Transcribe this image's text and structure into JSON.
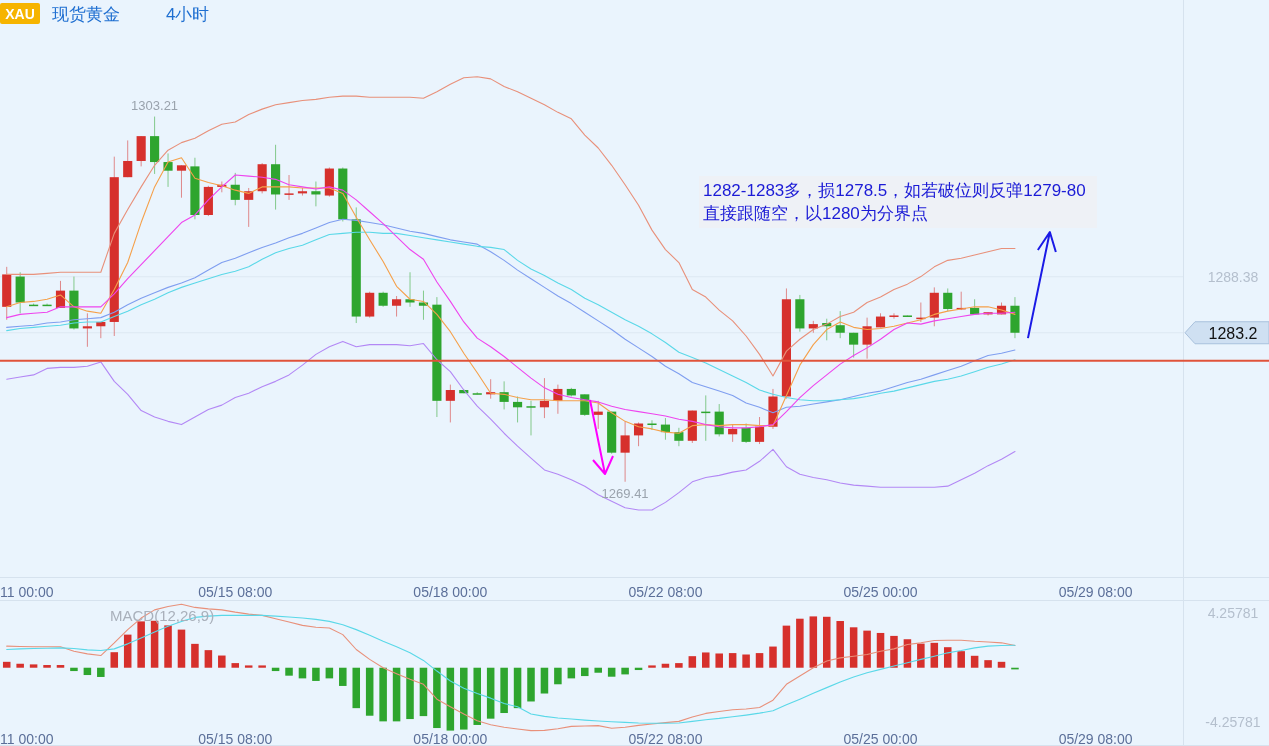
{
  "chart_data": [
    {
      "type": "candlestick",
      "title": "现货黄金",
      "subtitle": "4小时",
      "categories": [
        null,
        "11 00:00",
        null,
        null,
        null,
        null,
        null,
        null,
        null,
        null,
        null,
        null,
        null,
        null,
        null,
        null,
        null,
        "05/15 08:00",
        null,
        null,
        null,
        null,
        null,
        null,
        null,
        null,
        null,
        null,
        null,
        null,
        null,
        null,
        null,
        "05/18 00:00",
        null,
        null,
        null,
        null,
        null,
        null,
        null,
        null,
        null,
        null,
        null,
        null,
        null,
        null,
        null,
        "05/22 08:00",
        null,
        null,
        null,
        null,
        null,
        null,
        null,
        null,
        null,
        null,
        null,
        null,
        null,
        null,
        null,
        "05/25 00:00",
        null,
        null,
        null,
        null,
        null,
        null,
        null,
        null,
        null,
        null,
        null,
        null,
        null,
        null,
        null,
        "05/29 08:00",
        null,
        null,
        null,
        null,
        null,
        null
      ],
      "ohlc": [
        [
          1285.6,
          1289.3,
          1284.4,
          1288.6
        ],
        [
          1288.4,
          1288.8,
          1285.0,
          1286.0
        ],
        [
          1285.8,
          1285.9,
          1285.7,
          1285.8
        ],
        [
          1285.8,
          1285.9,
          1285.7,
          1285.8
        ],
        [
          1285.5,
          1288.0,
          1285.5,
          1287.1
        ],
        [
          1287.1,
          1288.4,
          1283.5,
          1283.6
        ],
        [
          1283.6,
          1285.0,
          1281.9,
          1283.8
        ],
        [
          1283.8,
          1284.2,
          1282.7,
          1284.2
        ],
        [
          1284.2,
          1299.5,
          1282.9,
          1297.6
        ],
        [
          1297.6,
          1301.0,
          1297.6,
          1299.1
        ],
        [
          1299.1,
          1301.4,
          1298.6,
          1301.4
        ],
        [
          1301.4,
          1303.21,
          1297.9,
          1299.0
        ],
        [
          1299.0,
          1299.8,
          1296.7,
          1298.2
        ],
        [
          1298.2,
          1298.7,
          1295.7,
          1298.7
        ],
        [
          1298.6,
          1299.4,
          1293.7,
          1294.1
        ],
        [
          1294.1,
          1296.8,
          1294.0,
          1296.7
        ],
        [
          1296.7,
          1297.2,
          1296.2,
          1296.9
        ],
        [
          1296.9,
          1298.0,
          1295.0,
          1295.5
        ],
        [
          1295.5,
          1296.6,
          1293.0,
          1296.3
        ],
        [
          1296.3,
          1298.9,
          1296.1,
          1298.8
        ],
        [
          1298.8,
          1300.6,
          1294.6,
          1296.0
        ],
        [
          1296.0,
          1297.8,
          1295.5,
          1296.1
        ],
        [
          1296.1,
          1296.6,
          1295.9,
          1296.3
        ],
        [
          1296.3,
          1297.2,
          1294.9,
          1296.0
        ],
        [
          1295.9,
          1298.5,
          1295.8,
          1298.4
        ],
        [
          1298.4,
          1298.5,
          1293.5,
          1293.7
        ],
        [
          1293.7,
          1294.8,
          1284.1,
          1284.7
        ],
        [
          1284.7,
          1287.0,
          1284.6,
          1286.9
        ],
        [
          1286.9,
          1287.0,
          1285.6,
          1285.7
        ],
        [
          1285.7,
          1286.6,
          1284.7,
          1286.3
        ],
        [
          1286.3,
          1288.8,
          1285.6,
          1286.0
        ],
        [
          1286.0,
          1287.1,
          1284.4,
          1285.7
        ],
        [
          1285.8,
          1286.5,
          1275.4,
          1276.9
        ],
        [
          1276.9,
          1278.4,
          1274.9,
          1277.9
        ],
        [
          1277.9,
          1278.0,
          1277.6,
          1277.6
        ],
        [
          1277.6,
          1277.7,
          1277.5,
          1277.5
        ],
        [
          1277.5,
          1278.9,
          1277.1,
          1277.7
        ],
        [
          1277.7,
          1278.7,
          1276.1,
          1276.8
        ],
        [
          1276.8,
          1277.3,
          1274.9,
          1276.3
        ],
        [
          1276.4,
          1276.9,
          1273.7,
          1276.3
        ],
        [
          1276.3,
          1279.0,
          1275.3,
          1276.9
        ],
        [
          1276.9,
          1278.4,
          1275.7,
          1278.0
        ],
        [
          1278.0,
          1278.1,
          1277.3,
          1277.4
        ],
        [
          1277.5,
          1277.5,
          1275.5,
          1275.6
        ],
        [
          1275.6,
          1276.9,
          1274.3,
          1275.9
        ],
        [
          1275.9,
          1275.9,
          1272.0,
          1272.1
        ],
        [
          1272.1,
          1275.0,
          1269.41,
          1273.7
        ],
        [
          1273.7,
          1274.9,
          1272.7,
          1274.8
        ],
        [
          1274.8,
          1275.1,
          1274.2,
          1274.7
        ],
        [
          1274.7,
          1275.3,
          1273.3,
          1274.0
        ],
        [
          1274.0,
          1274.4,
          1272.7,
          1273.2
        ],
        [
          1273.2,
          1276.0,
          1273.0,
          1276.0
        ],
        [
          1275.9,
          1277.4,
          1273.2,
          1275.8
        ],
        [
          1275.9,
          1276.6,
          1273.6,
          1273.8
        ],
        [
          1273.8,
          1274.7,
          1273.1,
          1274.3
        ],
        [
          1274.4,
          1274.8,
          1273.0,
          1273.1
        ],
        [
          1273.1,
          1275.4,
          1272.9,
          1274.5
        ],
        [
          1274.5,
          1278.0,
          1274.3,
          1277.3
        ],
        [
          1277.3,
          1287.3,
          1277.1,
          1286.3
        ],
        [
          1286.3,
          1286.7,
          1283.3,
          1283.6
        ],
        [
          1283.6,
          1284.3,
          1283.2,
          1284.0
        ],
        [
          1284.1,
          1284.5,
          1282.5,
          1283.8
        ],
        [
          1283.9,
          1285.2,
          1282.7,
          1283.2
        ],
        [
          1283.2,
          1283.2,
          1280.9,
          1282.1
        ],
        [
          1282.1,
          1284.6,
          1280.8,
          1283.8
        ],
        [
          1283.7,
          1285.0,
          1283.7,
          1284.7
        ],
        [
          1284.7,
          1285.0,
          1284.5,
          1284.8
        ],
        [
          1284.8,
          1284.8,
          1284.7,
          1284.7
        ],
        [
          1284.5,
          1286.0,
          1284.2,
          1284.6
        ],
        [
          1284.6,
          1287.4,
          1283.8,
          1286.9
        ],
        [
          1286.9,
          1287.3,
          1285.2,
          1285.4
        ],
        [
          1285.4,
          1287.0,
          1285.3,
          1285.5
        ],
        [
          1285.5,
          1286.3,
          1284.9,
          1284.9
        ],
        [
          1284.9,
          1285.1,
          1284.8,
          1285.1
        ],
        [
          1284.9,
          1286.0,
          1284.9,
          1285.7
        ],
        [
          1285.7,
          1286.5,
          1282.7,
          1283.2
        ],
        null,
        null,
        null,
        null,
        null,
        null,
        null,
        null,
        null,
        null,
        null,
        null
      ],
      "colors": [
        "#d6302c",
        "#2ea52e",
        "#2ea52e",
        "#2ea52e",
        "#d6302c",
        "#2ea52e",
        "#d6302c",
        "#d6302c",
        "#d6302c",
        "#d6302c",
        "#d6302c",
        "#2ea52e",
        "#2ea52e",
        "#d6302c",
        "#2ea52e",
        "#d6302c",
        "#d6302c",
        "#2ea52e",
        "#d6302c",
        "#d6302c",
        "#2ea52e",
        "#d6302c",
        "#d6302c",
        "#2ea52e",
        "#d6302c",
        "#2ea52e",
        "#2ea52e",
        "#d6302c",
        "#2ea52e",
        "#d6302c",
        "#2ea52e",
        "#2ea52e",
        "#2ea52e",
        "#d6302c",
        "#2ea52e",
        "#2ea52e",
        "#d6302c",
        "#2ea52e",
        "#2ea52e",
        "#2ea52e",
        "#d6302c",
        "#d6302c",
        "#2ea52e",
        "#2ea52e",
        "#d6302c",
        "#2ea52e",
        "#d6302c",
        "#d6302c",
        "#2ea52e",
        "#2ea52e",
        "#2ea52e",
        "#d6302c",
        "#2ea52e",
        "#2ea52e",
        "#d6302c",
        "#2ea52e",
        "#d6302c",
        "#d6302c",
        "#d6302c",
        "#2ea52e",
        "#d6302c",
        "#2ea52e",
        "#2ea52e",
        "#2ea52e",
        "#d6302c",
        "#d6302c",
        "#d6302c",
        "#2ea52e",
        "#d6302c",
        "#d6302c",
        "#2ea52e",
        "#d6302c",
        "#2ea52e",
        "#d6302c",
        "#d6302c",
        "#2ea52e",
        null,
        null,
        null,
        null,
        null,
        null,
        null,
        null,
        null,
        null,
        null,
        null
      ],
      "series": [
        {
          "type": "line",
          "color": "#e8907a",
          "values": [
            1288.6,
            1288.6,
            1288.6,
            1288.7,
            1288.8,
            1288.8,
            1288.8,
            1288.8,
            1292.4,
            1294.6,
            1296.7,
            1298.7,
            1300.1,
            1300.8,
            1301.2,
            1301.9,
            1302.5,
            1302.7,
            1303.4,
            1303.9,
            1304.3,
            1304.5,
            1304.7,
            1304.8,
            1305.0,
            1305.1,
            1305.1,
            1305.0,
            1305.0,
            1305.0,
            1305.0,
            1304.9,
            1305.5,
            1306.2,
            1306.8,
            1306.9,
            1306.7,
            1306.0,
            1305.5,
            1304.9,
            1304.3,
            1303.6,
            1303.0,
            1301.5,
            1300.3,
            1298.7,
            1296.9,
            1295.0,
            1292.7,
            1290.9,
            1289.7,
            1287.2,
            1286.5,
            1285.3,
            1284.3,
            1282.9,
            1281.2,
            1279.2,
            1281.5,
            1282.6,
            1283.5,
            1284.0,
            1284.7,
            1285.1,
            1286.0,
            1286.5,
            1287.2,
            1287.7,
            1288.4,
            1289.3,
            1289.9,
            1290.1,
            1290.4,
            1290.7,
            1291.0,
            1291.0,
            null,
            null,
            null,
            null,
            null,
            null,
            null,
            null,
            null,
            null,
            null,
            null
          ]
        },
        {
          "type": "line",
          "color": "#b388f5",
          "values": [
            1278.9,
            1279.1,
            1279.3,
            1279.9,
            1280.0,
            1280.0,
            1280.1,
            1280.5,
            1278.7,
            1277.5,
            1276.0,
            1275.4,
            1275.0,
            1274.7,
            1275.4,
            1276.1,
            1276.5,
            1277.2,
            1277.6,
            1278.2,
            1278.7,
            1279.3,
            1280.2,
            1281.2,
            1281.9,
            1282.4,
            1281.9,
            1282.1,
            1282.1,
            1282.1,
            1282.0,
            1282.2,
            1280.7,
            1279.6,
            1277.9,
            1276.4,
            1275.2,
            1273.9,
            1272.7,
            1271.6,
            1270.5,
            1270.1,
            1269.6,
            1269.0,
            1268.2,
            1267.6,
            1267.0,
            1266.8,
            1266.8,
            1267.5,
            1268.4,
            1269.4,
            1269.8,
            1270.0,
            1270.3,
            1270.5,
            1271.3,
            1272.4,
            1270.8,
            1270.1,
            1269.8,
            1269.6,
            1269.3,
            1269.1,
            1269.0,
            1268.9,
            1268.9,
            1268.9,
            1268.9,
            1268.9,
            1269.0,
            1269.6,
            1270.2,
            1270.9,
            1271.5,
            1272.2,
            null,
            null,
            null,
            null,
            null,
            null,
            null,
            null,
            null,
            null,
            null,
            null
          ]
        },
        {
          "type": "line",
          "color": "#7f9ef0",
          "values": [
            1283.7,
            1283.8,
            1283.9,
            1284.1,
            1284.2,
            1284.4,
            1284.5,
            1284.6,
            1285.1,
            1285.8,
            1286.4,
            1286.9,
            1287.4,
            1287.8,
            1288.3,
            1289.0,
            1289.7,
            1290.1,
            1290.6,
            1291.1,
            1291.5,
            1292.0,
            1292.4,
            1292.9,
            1293.4,
            1293.7,
            1293.6,
            1293.4,
            1293.2,
            1292.9,
            1292.6,
            1292.4,
            1292.1,
            1291.8,
            1291.6,
            1291.4,
            1290.7,
            1289.9,
            1289.0,
            1288.2,
            1287.4,
            1286.6,
            1285.9,
            1285.1,
            1284.3,
            1283.5,
            1282.6,
            1281.8,
            1281.0,
            1280.1,
            1279.4,
            1278.6,
            1278.2,
            1277.8,
            1277.4,
            1276.7,
            1276.3,
            1275.8,
            1276.3,
            1276.4,
            1276.6,
            1276.8,
            1277.0,
            1277.3,
            1277.6,
            1277.8,
            1278.2,
            1278.6,
            1278.9,
            1279.3,
            1279.7,
            1280.1,
            1280.6,
            1281.1,
            1281.3,
            1281.6,
            null,
            null,
            null,
            null,
            null,
            null,
            null,
            null,
            null,
            null,
            null,
            null
          ]
        },
        {
          "type": "line",
          "color": "#5ad8e8",
          "values": [
            1283.4,
            1283.6,
            1283.7,
            1283.8,
            1283.9,
            1284.1,
            1284.2,
            1284.2,
            1284.7,
            1285.2,
            1285.8,
            1286.3,
            1286.9,
            1287.4,
            1287.8,
            1288.2,
            1288.6,
            1288.9,
            1289.3,
            1290.0,
            1290.6,
            1291.0,
            1291.3,
            1291.8,
            1292.3,
            1292.4,
            1292.5,
            1292.5,
            1292.4,
            1292.4,
            1292.2,
            1292.0,
            1291.8,
            1291.6,
            1291.4,
            1291.2,
            1291.1,
            1290.9,
            1289.9,
            1289.1,
            1288.5,
            1287.8,
            1287.2,
            1286.4,
            1285.8,
            1285.1,
            1284.4,
            1283.8,
            1283.1,
            1282.3,
            1281.4,
            1280.9,
            1280.4,
            1279.8,
            1279.2,
            1278.6,
            1277.9,
            1277.5,
            1277.2,
            1277.0,
            1276.9,
            1276.9,
            1277.0,
            1277.1,
            1277.3,
            1277.6,
            1277.8,
            1278.1,
            1278.4,
            1278.7,
            1278.9,
            1279.2,
            1279.6,
            1280.0,
            1280.3,
            1280.7,
            null,
            null,
            null,
            null,
            null,
            null,
            null,
            null,
            null,
            null,
            null,
            null
          ]
        },
        {
          "type": "line",
          "color": "#f5a04a",
          "values": [
            1285.6,
            1286.0,
            1286.1,
            1286.3,
            1286.7,
            1285.6,
            1285.2,
            1285.0,
            1287.2,
            1289.7,
            1293.4,
            1296.7,
            1299.0,
            1299.4,
            1297.5,
            1297.1,
            1296.8,
            1296.4,
            1296.1,
            1296.7,
            1296.7,
            1296.7,
            1296.6,
            1296.6,
            1296.6,
            1296.1,
            1293.9,
            1291.8,
            1289.8,
            1287.5,
            1286.3,
            1286.1,
            1284.9,
            1283.3,
            1281.3,
            1279.5,
            1277.6,
            1277.5,
            1277.2,
            1277.0,
            1277.0,
            1276.9,
            1276.9,
            1276.9,
            1276.7,
            1275.8,
            1275.0,
            1274.5,
            1274.3,
            1274.0,
            1273.9,
            1274.6,
            1274.7,
            1274.6,
            1274.7,
            1274.7,
            1274.6,
            1274.6,
            1277.4,
            1280.2,
            1282.1,
            1283.5,
            1284.2,
            1283.7,
            1283.5,
            1283.6,
            1283.8,
            1284.1,
            1284.4,
            1284.9,
            1285.2,
            1285.4,
            1285.6,
            1285.6,
            1285.3,
            1284.9,
            null,
            null,
            null,
            null,
            null,
            null,
            null,
            null,
            null,
            null,
            null,
            null
          ]
        },
        {
          "type": "line",
          "color": "#ee44ee",
          "values": [
            1284.6,
            1284.9,
            1285.0,
            1285.1,
            1285.6,
            1285.6,
            1285.6,
            1285.6,
            1286.8,
            1288.2,
            1289.5,
            1290.8,
            1292.1,
            1293.4,
            1294.1,
            1295.5,
            1296.7,
            1297.8,
            1297.7,
            1297.6,
            1297.4,
            1296.9,
            1296.7,
            1296.5,
            1296.7,
            1296.4,
            1295.5,
            1294.4,
            1293.3,
            1292.1,
            1290.9,
            1290.0,
            1287.9,
            1286.1,
            1284.2,
            1282.7,
            1281.9,
            1281.0,
            1280.0,
            1279.0,
            1278.1,
            1277.5,
            1277.2,
            1277.0,
            1276.8,
            1276.4,
            1276.1,
            1275.9,
            1275.7,
            1275.5,
            1275.2,
            1275.0,
            1274.7,
            1274.5,
            1274.4,
            1274.4,
            1274.5,
            1274.7,
            1275.9,
            1277.2,
            1278.3,
            1279.3,
            1280.3,
            1281.1,
            1281.8,
            1282.6,
            1283.5,
            1284.1,
            1284.0,
            1284.3,
            1284.5,
            1284.7,
            1284.9,
            1285.0,
            1285.0,
            1285.1,
            null,
            null,
            null,
            null,
            null,
            null,
            null,
            null,
            null,
            null,
            null,
            null
          ]
        }
      ],
      "ylim": [
        1260.5,
        1314
      ],
      "yticks": [
        1288.38,
        1283.2
      ],
      "grid": "y",
      "ref_lines": [
        {
          "axis": "y",
          "value": 1280.6,
          "color": "#e0533a"
        }
      ],
      "annotations": [
        "XAU",
        "1282-1283多，损1278.5，如若破位则反弹1279-80直接跟随空，以1280为分界点",
        {
          "text": "1303.21",
          "y": 1303.21
        },
        {
          "text": "1269.41",
          "y": 1269.41
        }
      ]
    },
    {
      "type": "bar",
      "title": "MACD(12,26,9)",
      "categories": [
        null,
        "11 00:00",
        null,
        null,
        null,
        null,
        null,
        null,
        null,
        null,
        null,
        null,
        null,
        null,
        null,
        null,
        null,
        "05/15 08:00",
        null,
        null,
        null,
        null,
        null,
        null,
        null,
        null,
        null,
        null,
        null,
        null,
        null,
        null,
        null,
        "05/18 00:00",
        null,
        null,
        null,
        null,
        null,
        null,
        null,
        null,
        null,
        null,
        null,
        null,
        null,
        null,
        null,
        "05/22 08:00",
        null,
        null,
        null,
        null,
        null,
        null,
        null,
        null,
        null,
        null,
        null,
        null,
        null,
        null,
        null,
        "05/25 00:00",
        null,
        null,
        null,
        null,
        null,
        null,
        null,
        null,
        null,
        null,
        null,
        null,
        null,
        null,
        null,
        "05/29 08:00",
        null,
        null,
        null,
        null,
        null,
        null
      ],
      "series": [
        {
          "type": "bar",
          "colors": [
            "#d6302c",
            "#d6302c",
            "#d6302c",
            "#d6302c",
            "#d6302c",
            "#2ea52e",
            "#2ea52e",
            "#2ea52e",
            "#d6302c",
            "#d6302c",
            "#d6302c",
            "#d6302c",
            "#d6302c",
            "#d6302c",
            "#d6302c",
            "#d6302c",
            "#d6302c",
            "#d6302c",
            "#d6302c",
            "#d6302c",
            "#2ea52e",
            "#2ea52e",
            "#2ea52e",
            "#2ea52e",
            "#2ea52e",
            "#2ea52e",
            "#2ea52e",
            "#2ea52e",
            "#2ea52e",
            "#2ea52e",
            "#2ea52e",
            "#2ea52e",
            "#2ea52e",
            "#2ea52e",
            "#2ea52e",
            "#2ea52e",
            "#2ea52e",
            "#2ea52e",
            "#2ea52e",
            "#2ea52e",
            "#2ea52e",
            "#2ea52e",
            "#2ea52e",
            "#2ea52e",
            "#2ea52e",
            "#2ea52e",
            "#2ea52e",
            "#2ea52e",
            "#d6302c",
            "#d6302c",
            "#d6302c",
            "#d6302c",
            "#d6302c",
            "#d6302c",
            "#d6302c",
            "#d6302c",
            "#d6302c",
            "#d6302c",
            "#d6302c",
            "#d6302c",
            "#d6302c",
            "#d6302c",
            "#d6302c",
            "#d6302c",
            "#d6302c",
            "#d6302c",
            "#d6302c",
            "#d6302c",
            "#d6302c",
            "#d6302c",
            "#d6302c",
            "#d6302c",
            "#d6302c",
            "#d6302c",
            "#d6302c",
            "#2ea52e",
            null,
            null,
            null,
            null,
            null,
            null,
            null,
            null,
            null,
            null,
            null,
            null
          ],
          "values": [
            0.46,
            0.31,
            0.26,
            0.21,
            0.21,
            -0.26,
            -0.57,
            -0.72,
            1.21,
            2.58,
            3.61,
            3.66,
            3.3,
            2.97,
            1.86,
            1.37,
            0.95,
            0.36,
            0.18,
            0.18,
            -0.26,
            -0.62,
            -0.83,
            -1.03,
            -0.83,
            -1.42,
            -3.15,
            -3.74,
            -4.18,
            -4.18,
            -4.0,
            -3.77,
            -4.7,
            -4.9,
            -4.82,
            -4.46,
            -3.97,
            -3.53,
            -3.15,
            -2.63,
            -2.01,
            -1.29,
            -0.83,
            -0.65,
            -0.39,
            -0.7,
            -0.52,
            -0.18,
            0.18,
            0.31,
            0.36,
            0.9,
            1.19,
            1.11,
            1.14,
            1.03,
            1.14,
            1.65,
            3.28,
            3.82,
            4.0,
            3.97,
            3.64,
            3.15,
            2.89,
            2.71,
            2.48,
            2.22,
            1.88,
            1.94,
            1.6,
            1.29,
            0.93,
            0.59,
            0.46,
            -0.13,
            null,
            null,
            null,
            null,
            null,
            null,
            null,
            null,
            null,
            null,
            null,
            null
          ]
        },
        {
          "type": "line",
          "color": "#e8907a",
          "values": [
            1.68,
            1.65,
            1.63,
            1.63,
            1.63,
            1.29,
            1.08,
            0.95,
            1.93,
            2.97,
            3.87,
            4.51,
            4.77,
            4.95,
            4.7,
            4.59,
            4.51,
            4.33,
            4.18,
            4.08,
            3.82,
            3.56,
            3.3,
            3.15,
            3.1,
            2.58,
            1.42,
            0.65,
            0.0,
            -0.46,
            -0.9,
            -1.29,
            -2.45,
            -3.04,
            -3.61,
            -4.13,
            -4.44,
            -4.64,
            -4.77,
            -4.9,
            -4.88,
            -4.75,
            -4.57,
            -4.54,
            -4.51,
            -4.72,
            -4.64,
            -4.49,
            -4.39,
            -4.28,
            -4.18,
            -3.84,
            -3.56,
            -3.41,
            -3.28,
            -3.22,
            -3.1,
            -2.53,
            -1.29,
            -0.65,
            0.0,
            0.52,
            0.77,
            0.9,
            1.03,
            1.29,
            1.47,
            1.81,
            1.94,
            2.12,
            2.14,
            2.14,
            2.06,
            2.01,
            1.94,
            1.73,
            null,
            null,
            null,
            null,
            null,
            null,
            null,
            null,
            null,
            null,
            null,
            null
          ]
        },
        {
          "type": "line",
          "color": "#5ad8e8",
          "values": [
            1.42,
            1.47,
            1.5,
            1.52,
            1.55,
            1.5,
            1.39,
            1.34,
            1.47,
            1.86,
            2.32,
            2.79,
            3.23,
            3.61,
            3.92,
            4.02,
            4.08,
            4.08,
            4.08,
            4.08,
            4.02,
            3.95,
            3.87,
            3.77,
            3.61,
            3.35,
            2.97,
            2.53,
            2.06,
            1.63,
            1.16,
            0.57,
            -0.26,
            -1.03,
            -1.6,
            -2.01,
            -2.37,
            -2.79,
            -3.04,
            -3.61,
            -3.79,
            -3.92,
            -4.0,
            -4.08,
            -4.15,
            -4.21,
            -4.26,
            -4.31,
            -4.33,
            -4.33,
            -4.31,
            -4.18,
            -4.05,
            -3.95,
            -3.82,
            -3.69,
            -3.54,
            -3.35,
            -2.89,
            -2.45,
            -1.99,
            -1.55,
            -1.11,
            -0.72,
            -0.39,
            -0.13,
            0.13,
            0.39,
            0.65,
            0.9,
            1.16,
            1.34,
            1.55,
            1.68,
            1.73,
            1.75,
            null,
            null,
            null,
            null,
            null,
            null,
            null,
            null,
            null,
            null,
            null,
            null
          ]
        }
      ],
      "ylim": [
        -6.1,
        5.2
      ],
      "yticks": [
        4.25781,
        -4.25781
      ]
    }
  ]
}
